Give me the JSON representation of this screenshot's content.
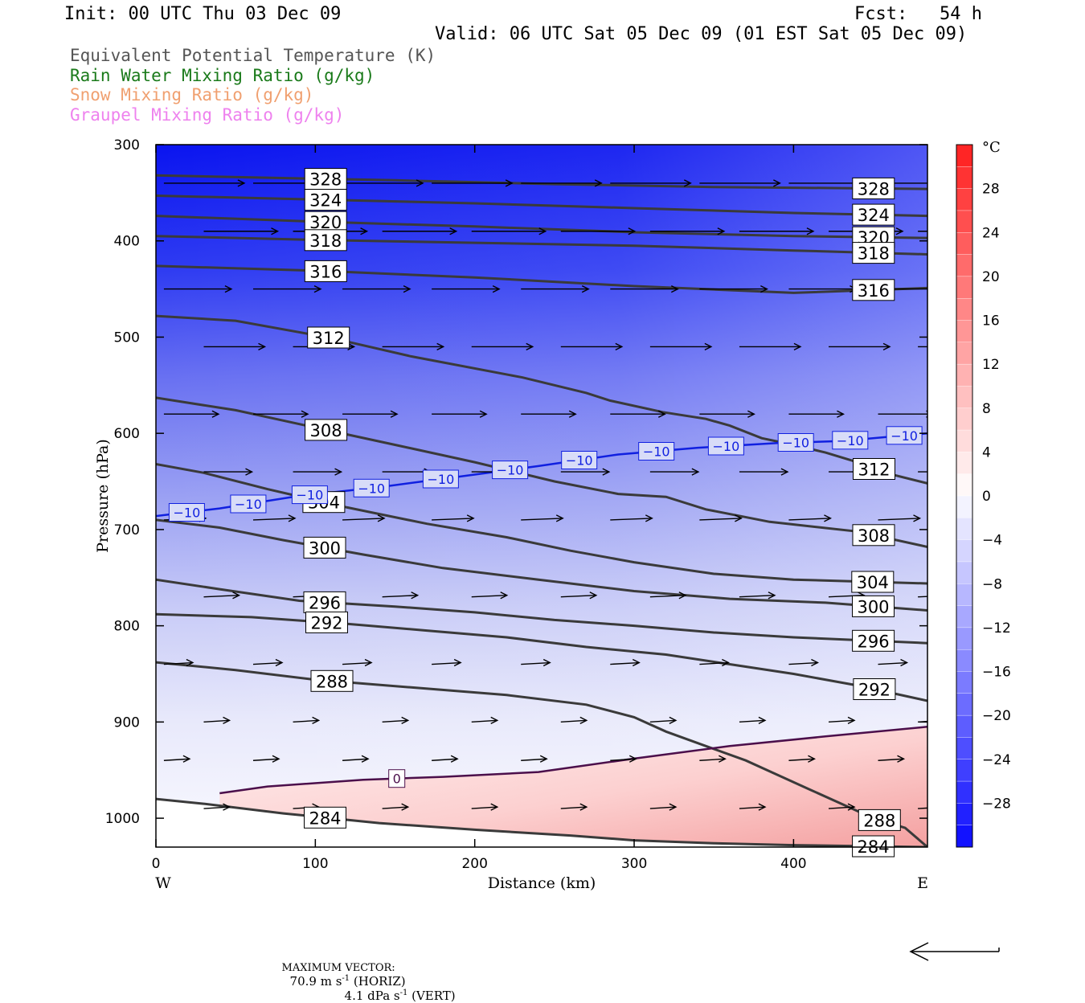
{
  "header": {
    "init": "Init: 00 UTC Thu 03 Dec 09",
    "fcst": "Fcst:   54 h",
    "valid": "Valid: 06 UTC Sat 05 Dec 09 (01 EST Sat 05 Dec 09)"
  },
  "legend": [
    {
      "label": "Equivalent Potential Temperature (K)",
      "color": "#555555"
    },
    {
      "label": "Rain Water Mixing Ratio (g/kg)",
      "color": "#1a7a1a"
    },
    {
      "label": "Snow Mixing Ratio (g/kg)",
      "color": "#f0a070"
    },
    {
      "label": "Graupel Mixing Ratio (g/kg)",
      "color": "#ee82ee"
    }
  ],
  "footer": {
    "prefix": "MAXIMUM VECTOR:",
    "horiz_value": "70.9 m s",
    "horiz_suffix": " (HORIZ)",
    "vert_value": "4.1 dPa s",
    "vert_suffix": " (VERT)",
    "exp": "-1"
  },
  "chart_data": {
    "type": "cross-section",
    "xlabel": "Distance (km)",
    "ylabel": "Pressure (hPa)",
    "x_ticks": [
      0,
      100,
      200,
      300,
      400
    ],
    "x_end_labels": {
      "left": "W",
      "right": "E"
    },
    "xlim": [
      0,
      484
    ],
    "y_ticks": [
      300,
      400,
      500,
      600,
      700,
      800,
      900,
      1000
    ],
    "ylim": [
      300,
      1030
    ],
    "colorbar": {
      "unit": "°C",
      "tick_labels": [
        "28",
        "24",
        "20",
        "16",
        "12",
        "8",
        "4",
        "0",
        "−4",
        "−8",
        "−12",
        "−16",
        "−20",
        "−24",
        "−28"
      ],
      "range": [
        -32,
        32
      ]
    },
    "theta_e_contours": [
      {
        "value": 328,
        "points": [
          [
            0,
            332
          ],
          [
            60,
            334
          ],
          [
            150,
            337
          ],
          [
            250,
            341
          ],
          [
            350,
            344
          ],
          [
            420,
            345
          ],
          [
            484,
            346
          ]
        ]
      },
      {
        "value": 324,
        "points": [
          [
            0,
            353
          ],
          [
            100,
            357
          ],
          [
            200,
            361
          ],
          [
            300,
            366
          ],
          [
            400,
            371
          ],
          [
            484,
            374
          ]
        ]
      },
      {
        "value": 320,
        "points": [
          [
            0,
            374
          ],
          [
            100,
            380
          ],
          [
            200,
            385
          ],
          [
            300,
            391
          ],
          [
            400,
            395
          ],
          [
            484,
            397
          ]
        ]
      },
      {
        "value": 318,
        "points": [
          [
            0,
            395
          ],
          [
            100,
            399
          ],
          [
            200,
            402
          ],
          [
            300,
            405
          ],
          [
            400,
            410
          ],
          [
            484,
            414
          ]
        ]
      },
      {
        "value": 316,
        "points": [
          [
            0,
            426
          ],
          [
            100,
            431
          ],
          [
            200,
            438
          ],
          [
            300,
            447
          ],
          [
            400,
            454
          ],
          [
            484,
            449
          ]
        ]
      },
      {
        "value": 312,
        "points": [
          [
            0,
            478
          ],
          [
            50,
            483
          ],
          [
            110,
            501
          ],
          [
            160,
            520
          ],
          [
            230,
            542
          ],
          [
            270,
            558
          ],
          [
            285,
            566
          ],
          [
            318,
            578
          ],
          [
            345,
            585
          ],
          [
            360,
            592
          ],
          [
            380,
            605
          ],
          [
            400,
            612
          ],
          [
            420,
            620
          ],
          [
            440,
            630
          ],
          [
            455,
            640
          ],
          [
            484,
            652
          ]
        ]
      },
      {
        "value": 308,
        "points": [
          [
            0,
            563
          ],
          [
            50,
            576
          ],
          [
            100,
            594
          ],
          [
            150,
            612
          ],
          [
            200,
            630
          ],
          [
            250,
            650
          ],
          [
            290,
            663
          ],
          [
            320,
            666
          ],
          [
            345,
            679
          ],
          [
            385,
            692
          ],
          [
            440,
            702
          ],
          [
            484,
            718
          ]
        ]
      },
      {
        "value": 304,
        "points": [
          [
            0,
            632
          ],
          [
            30,
            641
          ],
          [
            70,
            658
          ],
          [
            120,
            677
          ],
          [
            170,
            694
          ],
          [
            220,
            708
          ],
          [
            260,
            722
          ],
          [
            300,
            734
          ],
          [
            350,
            746
          ],
          [
            400,
            752
          ],
          [
            484,
            756
          ]
        ]
      },
      {
        "value": 300,
        "points": [
          [
            0,
            690
          ],
          [
            40,
            698
          ],
          [
            80,
            711
          ],
          [
            130,
            726
          ],
          [
            180,
            740
          ],
          [
            240,
            752
          ],
          [
            300,
            764
          ],
          [
            360,
            772
          ],
          [
            420,
            776
          ],
          [
            484,
            784
          ]
        ]
      },
      {
        "value": 296,
        "points": [
          [
            0,
            752
          ],
          [
            40,
            762
          ],
          [
            90,
            774
          ],
          [
            150,
            780
          ],
          [
            200,
            786
          ],
          [
            250,
            794
          ],
          [
            300,
            800
          ],
          [
            350,
            807
          ],
          [
            400,
            812
          ],
          [
            484,
            818
          ]
        ]
      },
      {
        "value": 292,
        "points": [
          [
            0,
            788
          ],
          [
            60,
            791
          ],
          [
            120,
            798
          ],
          [
            170,
            805
          ],
          [
            220,
            812
          ],
          [
            270,
            822
          ],
          [
            320,
            830
          ],
          [
            360,
            840
          ],
          [
            400,
            850
          ],
          [
            440,
            862
          ],
          [
            484,
            878
          ]
        ]
      },
      {
        "value": 288,
        "points": [
          [
            0,
            838
          ],
          [
            50,
            846
          ],
          [
            100,
            856
          ],
          [
            160,
            864
          ],
          [
            220,
            872
          ],
          [
            270,
            882
          ],
          [
            300,
            895
          ],
          [
            320,
            910
          ],
          [
            345,
            925
          ],
          [
            370,
            940
          ],
          [
            390,
            955
          ],
          [
            410,
            970
          ],
          [
            430,
            985
          ],
          [
            450,
            1000
          ],
          [
            470,
            1010
          ],
          [
            484,
            1030
          ]
        ]
      },
      {
        "value": 284,
        "points": [
          [
            0,
            980
          ],
          [
            30,
            985
          ],
          [
            80,
            995
          ],
          [
            140,
            1005
          ],
          [
            200,
            1012
          ],
          [
            260,
            1018
          ],
          [
            300,
            1023
          ],
          [
            350,
            1026
          ],
          [
            400,
            1028
          ],
          [
            484,
            1030
          ]
        ]
      }
    ],
    "isotherm_minus10": [
      [
        0,
        686
      ],
      [
        40,
        678
      ],
      [
        90,
        665
      ],
      [
        140,
        656
      ],
      [
        190,
        645
      ],
      [
        240,
        634
      ],
      [
        290,
        622
      ],
      [
        340,
        615
      ],
      [
        390,
        610
      ],
      [
        430,
        608
      ],
      [
        484,
        600
      ]
    ],
    "isotherm_0": [
      [
        40,
        974
      ],
      [
        70,
        967
      ],
      [
        130,
        960
      ],
      [
        180,
        957
      ],
      [
        240,
        952
      ],
      [
        300,
        938
      ],
      [
        360,
        925
      ],
      [
        420,
        915
      ],
      [
        484,
        905
      ]
    ]
  }
}
